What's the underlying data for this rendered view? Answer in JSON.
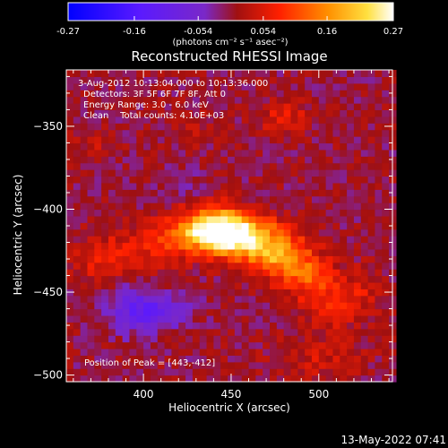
{
  "footer": {
    "timestamp": "13-May-2022 07:41"
  },
  "chart_data": {
    "type": "heatmap",
    "title": "Reconstructed RHESSI Image",
    "xlabel": "Heliocentric X (arcsec)",
    "ylabel": "Heliocentric Y (arcsec)",
    "xlim": [
      356,
      542
    ],
    "ylim": [
      -504,
      -316
    ],
    "x_ticks": [
      400,
      450,
      500
    ],
    "y_ticks": [
      -350,
      -400,
      -450,
      -500
    ],
    "colorbar": {
      "colormap": "black-blue-purple-red-yellow-white",
      "range": [
        -0.27,
        0.27
      ],
      "ticks": [
        -0.27,
        -0.16,
        -0.054,
        0.054,
        0.16,
        0.27
      ],
      "tick_labels": [
        "-0.27",
        "-0.16",
        "-0.054",
        "0.054",
        "0.16",
        "0.27"
      ],
      "unit_label": "(photons cm⁻² s⁻¹ asec⁻²)"
    },
    "annotations": [
      "3-Aug-2012 10:13:04.000 to 10:13:36.000",
      "Detectors: 3F 5F 6F 7F 8F, Att 0",
      "Energy Range: 3.0 - 6.0 keV",
      "Clean    Total counts: 4.10E+03"
    ],
    "peak_label": "Position of Peak = [443,-412]",
    "peak": {
      "x": 443,
      "y": -412,
      "value": 0.27
    },
    "sources": [
      {
        "x": 443,
        "y": -412,
        "sx": 13,
        "sy": 9,
        "amp": 0.27
      },
      {
        "x": 462,
        "y": -418,
        "sx": 17,
        "sy": 9,
        "amp": 0.17
      },
      {
        "x": 478,
        "y": -430,
        "sx": 12,
        "sy": 8,
        "amp": 0.12
      },
      {
        "x": 493,
        "y": -440,
        "sx": 11,
        "sy": 9,
        "amp": 0.1
      },
      {
        "x": 420,
        "y": -415,
        "sx": 10,
        "sy": 8,
        "amp": 0.09
      },
      {
        "x": 395,
        "y": -425,
        "sx": 14,
        "sy": 10,
        "amp": 0.06
      },
      {
        "x": 370,
        "y": -430,
        "sx": 10,
        "sy": 9,
        "amp": 0.05
      },
      {
        "x": 505,
        "y": -458,
        "sx": 10,
        "sy": 10,
        "amp": 0.07
      },
      {
        "x": 525,
        "y": -450,
        "sx": 9,
        "sy": 10,
        "amp": 0.05
      },
      {
        "x": 480,
        "y": -345,
        "sx": 9,
        "sy": 7,
        "amp": 0.07
      },
      {
        "x": 428,
        "y": -350,
        "sx": 8,
        "sy": 7,
        "amp": 0.03
      },
      {
        "x": 372,
        "y": -360,
        "sx": 8,
        "sy": 8,
        "amp": 0.035
      },
      {
        "x": 500,
        "y": -490,
        "sx": 18,
        "sy": 10,
        "amp": 0.04
      },
      {
        "x": 408,
        "y": -462,
        "sx": 12,
        "sy": 7,
        "amp": -0.1
      },
      {
        "x": 392,
        "y": -460,
        "sx": 10,
        "sy": 10,
        "amp": -0.06
      },
      {
        "x": 420,
        "y": -385,
        "sx": 9,
        "sy": 6,
        "amp": -0.035
      }
    ]
  }
}
